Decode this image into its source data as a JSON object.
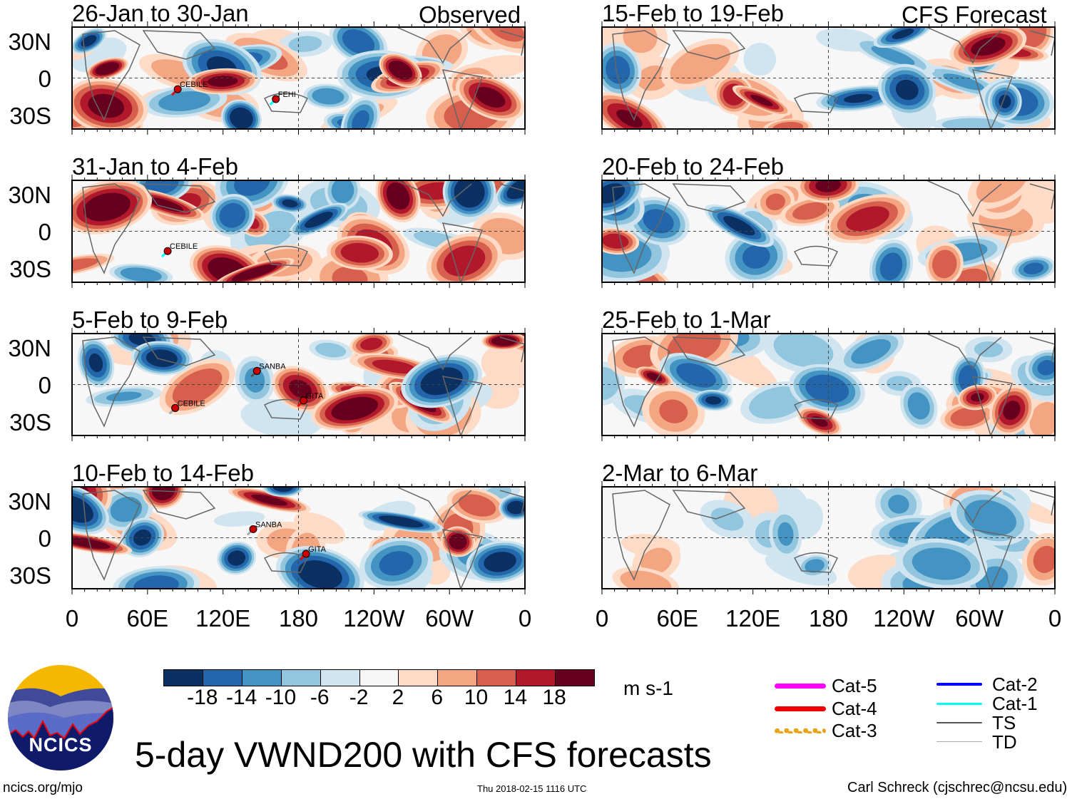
{
  "title": "5-day VWND200 with CFS forecasts",
  "columns": {
    "left": "Observed",
    "right": "CFS Forecast"
  },
  "panels": [
    {
      "col": "left",
      "period": "26-Jan to 30-Jan",
      "storms": [
        {
          "name": "CEBILE",
          "lon": 84,
          "lat": -9,
          "cat": "Cat-4"
        },
        {
          "name": "FEHI",
          "lon": 162,
          "lat": -17,
          "cat": "Cat-1"
        }
      ]
    },
    {
      "col": "left",
      "period": "31-Jan to 4-Feb",
      "storms": [
        {
          "name": "CEBILE",
          "lon": 76,
          "lat": -16,
          "cat": "Cat-1"
        }
      ]
    },
    {
      "col": "left",
      "period": "5-Feb to 9-Feb",
      "storms": [
        {
          "name": "SANBA",
          "lon": 147,
          "lat": 11,
          "cat": "TS"
        },
        {
          "name": "GITA",
          "lon": 184,
          "lat": -13,
          "cat": "Cat-4"
        },
        {
          "name": "CEBILE",
          "lon": 82,
          "lat": -19,
          "cat": "TD"
        }
      ]
    },
    {
      "col": "left",
      "period": "10-Feb to 14-Feb",
      "storms": [
        {
          "name": "SANBA",
          "lon": 144,
          "lat": 7,
          "cat": "TD"
        },
        {
          "name": "GITA",
          "lon": 186,
          "lat": -13,
          "cat": "Cat-4"
        }
      ]
    },
    {
      "col": "right",
      "period": "15-Feb to 19-Feb",
      "storms": []
    },
    {
      "col": "right",
      "period": "20-Feb to 24-Feb",
      "storms": []
    },
    {
      "col": "right",
      "period": "25-Feb to 1-Mar",
      "storms": []
    },
    {
      "col": "right",
      "period": "2-Mar to 6-Mar",
      "storms": []
    }
  ],
  "lat_labels": [
    "30N",
    "0",
    "30S"
  ],
  "lon_labels": [
    "0",
    "60E",
    "120E",
    "180",
    "120W",
    "60W",
    "0"
  ],
  "colorbar": {
    "units": "m s-1",
    "ticks": [
      "-18",
      "-14",
      "-10",
      "-6",
      "-2",
      "2",
      "6",
      "10",
      "14",
      "18"
    ],
    "colors": [
      "#0a3162",
      "#2466ab",
      "#4393c3",
      "#92c5de",
      "#d1e5f0",
      "#f7f7f7",
      "#fddbc7",
      "#f4a582",
      "#d6604d",
      "#b2182b",
      "#67001f"
    ]
  },
  "legend": [
    {
      "label": "Cat-5",
      "color": "#ff00ff"
    },
    {
      "label": "Cat-4",
      "color": "#ee0000"
    },
    {
      "label": "Cat-3",
      "color": "#e8a317"
    },
    {
      "label": "Cat-2",
      "color": "#0000ff"
    },
    {
      "label": "Cat-1",
      "color": "#00ffff"
    },
    {
      "label": "TS",
      "color": "#555555"
    },
    {
      "label": "TD",
      "color": "#aaaaaa"
    }
  ],
  "logo_text": "NCICS",
  "footer": {
    "url": "ncics.org/mjo",
    "timestamp": "Thu 2018-02-15 1116 UTC",
    "credit": "Carl Schreck (cjschrec@ncsu.edu)"
  }
}
